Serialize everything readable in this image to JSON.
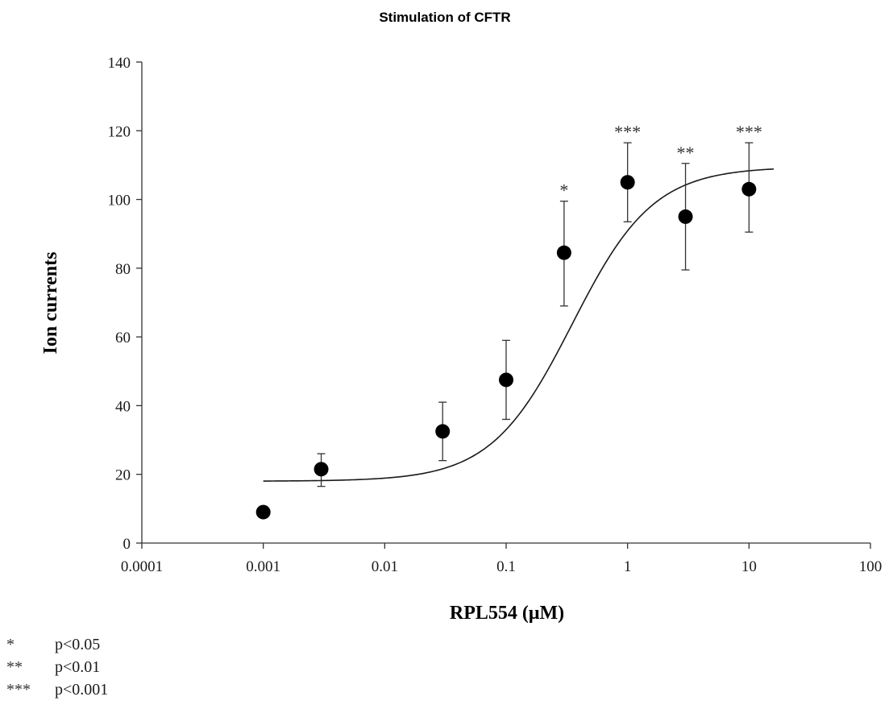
{
  "chart_data": {
    "type": "scatter",
    "title": "Stimulation of CFTR",
    "xlabel": "RPL554 (μM)",
    "ylabel": "Ion currents",
    "x_scale": "log",
    "xlim": [
      0.0001,
      100
    ],
    "ylim": [
      0,
      140
    ],
    "x_ticks": [
      "0.0001",
      "0.001",
      "0.01",
      "0.1",
      "1",
      "10",
      "100"
    ],
    "y_ticks": [
      "0",
      "20",
      "40",
      "60",
      "80",
      "100",
      "120",
      "140"
    ],
    "grid": false,
    "series": [
      {
        "points": [
          {
            "x": 0.001,
            "y": 9,
            "err_low": 7.5,
            "err_high": 10.5,
            "sig": ""
          },
          {
            "x": 0.003,
            "y": 21.5,
            "err_low": 16.5,
            "err_high": 26,
            "sig": ""
          },
          {
            "x": 0.03,
            "y": 32.5,
            "err_low": 24,
            "err_high": 41,
            "sig": ""
          },
          {
            "x": 0.1,
            "y": 47.5,
            "err_low": 36,
            "err_high": 59,
            "sig": ""
          },
          {
            "x": 0.3,
            "y": 84.5,
            "err_low": 69,
            "err_high": 99.5,
            "sig": "*"
          },
          {
            "x": 1,
            "y": 105,
            "err_low": 93.5,
            "err_high": 116.5,
            "sig": "***"
          },
          {
            "x": 3,
            "y": 95,
            "err_low": 79.5,
            "err_high": 110.5,
            "sig": "**"
          },
          {
            "x": 10,
            "y": 103,
            "err_low": 90.5,
            "err_high": 116.5,
            "sig": "***"
          }
        ]
      }
    ],
    "fit_curve": {
      "type": "sigmoid",
      "bottom": 18,
      "top": 109.5,
      "ec50": 0.35,
      "hill": 1.3,
      "x_range": [
        0.001,
        16
      ]
    },
    "legend": [
      {
        "symbol": "*",
        "label": "p<0.05"
      },
      {
        "symbol": "**",
        "label": "p<0.01"
      },
      {
        "symbol": "***",
        "label": "p<0.001"
      }
    ]
  }
}
